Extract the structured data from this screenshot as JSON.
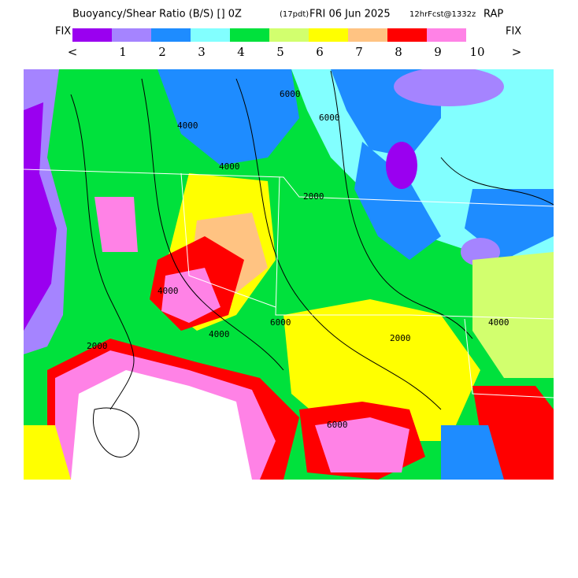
{
  "header": {
    "title_main": "Buoyancy/Shear Ratio (B/S) [] 0Z",
    "title_pdt": "(17pdt)",
    "title_date": "FRI 06 Jun 2025",
    "title_fcst": "12hrFcst@1332z",
    "title_model": "RAP"
  },
  "legend": {
    "left_label": "FIX",
    "right_label": "FIX",
    "colors": [
      "#9a00f0",
      "#a584ff",
      "#1e8cff",
      "#82ffff",
      "#00e13c",
      "#d2ff6e",
      "#ffff00",
      "#ffc382",
      "#ff0000",
      "#ff82e6"
    ],
    "labels": [
      "<",
      "1",
      "2",
      "3",
      "4",
      "5",
      "6",
      "7",
      "8",
      "9",
      "10",
      ">"
    ]
  },
  "map": {
    "contour_labels": [
      "4000",
      "4000",
      "2000",
      "6000",
      "6000",
      "4000",
      "2000",
      "4000",
      "6000",
      "2000",
      "4000",
      "6000"
    ]
  }
}
